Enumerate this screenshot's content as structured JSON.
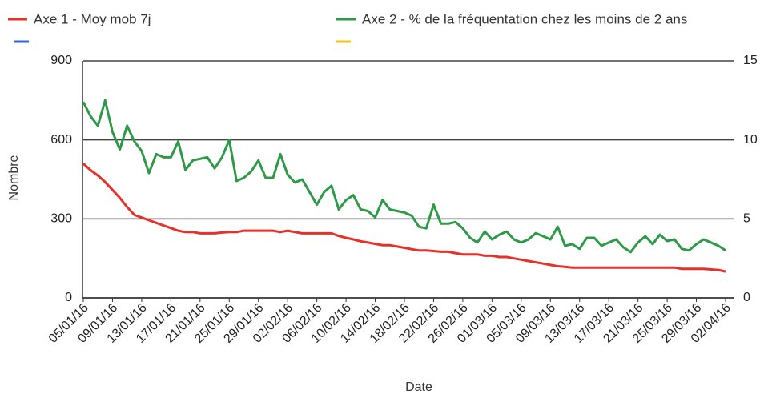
{
  "chart_data": {
    "type": "line",
    "x_label": "Date",
    "y_label": "Nombre",
    "categories": [
      "05/01/16",
      null,
      null,
      null,
      "09/01/16",
      null,
      null,
      null,
      "13/01/16",
      null,
      null,
      null,
      "17/01/16",
      null,
      null,
      null,
      "21/01/16",
      null,
      null,
      null,
      "25/01/16",
      null,
      null,
      null,
      "29/01/16",
      null,
      null,
      null,
      "02/02/16",
      null,
      null,
      null,
      "06/02/16",
      null,
      null,
      null,
      "10/02/16",
      null,
      null,
      null,
      "14/02/16",
      null,
      null,
      null,
      "18/02/16",
      null,
      null,
      null,
      "22/02/16",
      null,
      null,
      null,
      "26/02/16",
      null,
      null,
      null,
      "01/03/16",
      null,
      null,
      null,
      "05/03/16",
      null,
      null,
      null,
      "09/03/16",
      null,
      null,
      null,
      "13/03/16",
      null,
      null,
      null,
      "17/03/16",
      null,
      null,
      null,
      "21/03/16",
      null,
      null,
      null,
      "25/03/16",
      null,
      null,
      null,
      "29/03/16",
      null,
      null,
      null,
      "02/04/16"
    ],
    "series": [
      {
        "name": "Axe 1 - Moy mob 7j",
        "color": "#e8302a",
        "values": [
          510,
          485,
          465,
          440,
          410,
          380,
          345,
          315,
          305,
          295,
          285,
          275,
          265,
          255,
          250,
          250,
          245,
          245,
          245,
          248,
          250,
          250,
          255,
          255,
          255,
          255,
          255,
          250,
          255,
          250,
          245,
          245,
          245,
          245,
          245,
          235,
          228,
          222,
          215,
          210,
          205,
          200,
          200,
          195,
          190,
          185,
          180,
          180,
          178,
          175,
          175,
          170,
          165,
          165,
          165,
          160,
          160,
          155,
          155,
          150,
          145,
          140,
          135,
          130,
          125,
          120,
          118,
          115,
          115,
          115,
          115,
          115,
          115,
          115,
          115,
          115,
          115,
          115,
          115,
          115,
          115,
          115,
          110,
          110,
          110,
          110,
          108,
          106,
          100
        ]
      },
      {
        "name": "Axe 2 - % de la fréquentation chez les moins de 2 ans",
        "color": "#2e9a47",
        "axis": "y2",
        "values": [
          12.4,
          11.5,
          10.9,
          12.5,
          10.5,
          9.4,
          10.9,
          9.9,
          9.3,
          7.9,
          9.1,
          8.9,
          8.9,
          9.9,
          8.1,
          8.7,
          8.8,
          8.9,
          8.2,
          8.9,
          10.0,
          7.4,
          7.6,
          8.0,
          8.7,
          7.6,
          7.6,
          9.1,
          7.8,
          7.3,
          7.5,
          6.7,
          5.9,
          6.7,
          7.1,
          5.6,
          6.2,
          6.5,
          5.6,
          5.5,
          5.1,
          6.2,
          5.6,
          5.5,
          5.4,
          5.2,
          4.5,
          4.4,
          5.9,
          4.7,
          4.7,
          4.8,
          4.4,
          3.8,
          3.5,
          4.2,
          3.7,
          4.0,
          4.2,
          3.7,
          3.5,
          3.7,
          4.1,
          3.9,
          3.7,
          4.5,
          3.3,
          3.4,
          3.1,
          3.8,
          3.8,
          3.3,
          3.5,
          3.7,
          3.2,
          2.9,
          3.5,
          3.9,
          3.4,
          4.0,
          3.6,
          3.7,
          3.1,
          3.0,
          3.4,
          3.7,
          3.5,
          3.3,
          3.0
        ]
      }
    ],
    "ylim": [
      0,
      900
    ],
    "yticks": [
      0,
      300,
      600,
      900
    ],
    "y2lim": [
      0,
      15
    ],
    "y2ticks": [
      0,
      5,
      10,
      15
    ],
    "grid": true
  }
}
